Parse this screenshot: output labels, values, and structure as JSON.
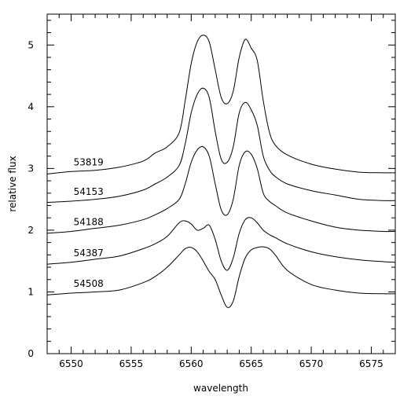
{
  "chart_data": {
    "type": "line",
    "xlabel": "wavelength",
    "ylabel": "relative flux",
    "xlim": [
      6548,
      6577
    ],
    "ylim": [
      0,
      5.5
    ],
    "x_ticks": [
      6550,
      6555,
      6560,
      6565,
      6570,
      6575
    ],
    "x_tick_labels": [
      "6550",
      "6555",
      "6560",
      "6565",
      "6570",
      "6575"
    ],
    "y_ticks": [
      0,
      1,
      2,
      3,
      4,
      5
    ],
    "y_tick_labels": [
      "0",
      "1",
      "2",
      "3",
      "4",
      "5"
    ],
    "grid": false,
    "series": [
      {
        "name": "53819",
        "x": [
          6548,
          6550,
          6552,
          6554,
          6556,
          6557,
          6558,
          6559,
          6559.5,
          6560,
          6560.5,
          6561,
          6561.5,
          6562,
          6562.5,
          6563,
          6563.5,
          6564,
          6564.5,
          6565,
          6565.5,
          6566,
          6566.5,
          6567,
          6568,
          6570,
          6572,
          6574,
          6576,
          6577
        ],
        "y": [
          2.91,
          2.95,
          2.97,
          3.02,
          3.12,
          3.25,
          3.35,
          3.58,
          4.1,
          4.7,
          5.05,
          5.16,
          5.05,
          4.6,
          4.15,
          4.05,
          4.25,
          4.8,
          5.09,
          4.95,
          4.75,
          4.1,
          3.6,
          3.38,
          3.22,
          3.07,
          2.99,
          2.94,
          2.93,
          2.93
        ]
      },
      {
        "name": "54153",
        "x": [
          6548,
          6550,
          6552,
          6554,
          6556,
          6557,
          6558,
          6559,
          6559.5,
          6560,
          6560.5,
          6561,
          6561.5,
          6562,
          6562.5,
          6563,
          6563.5,
          6564,
          6564.5,
          6565,
          6565.5,
          6566,
          6566.5,
          6567,
          6568,
          6570,
          6572,
          6574,
          6576,
          6577
        ],
        "y": [
          2.45,
          2.47,
          2.5,
          2.55,
          2.65,
          2.75,
          2.86,
          3.05,
          3.4,
          3.9,
          4.2,
          4.3,
          4.15,
          3.6,
          3.15,
          3.1,
          3.35,
          3.9,
          4.07,
          3.95,
          3.7,
          3.2,
          2.98,
          2.87,
          2.75,
          2.64,
          2.57,
          2.5,
          2.48,
          2.48
        ]
      },
      {
        "name": "54188",
        "x": [
          6548,
          6550,
          6552,
          6554,
          6556,
          6557,
          6558,
          6559,
          6559.5,
          6560,
          6560.5,
          6561,
          6561.5,
          6562,
          6562.5,
          6563,
          6563.5,
          6564,
          6564.5,
          6565,
          6565.5,
          6566,
          6566.5,
          6567,
          6568,
          6570,
          6572,
          6574,
          6576,
          6577
        ],
        "y": [
          1.95,
          1.98,
          2.03,
          2.08,
          2.17,
          2.25,
          2.35,
          2.5,
          2.75,
          3.1,
          3.3,
          3.35,
          3.2,
          2.75,
          2.33,
          2.25,
          2.5,
          3.05,
          3.27,
          3.23,
          3.0,
          2.6,
          2.47,
          2.4,
          2.28,
          2.15,
          2.05,
          2.0,
          1.98,
          1.98
        ]
      },
      {
        "name": "54387",
        "x": [
          6548,
          6550,
          6552,
          6554,
          6556,
          6557,
          6558,
          6559,
          6559.5,
          6560,
          6560.5,
          6561,
          6561.5,
          6562,
          6562.5,
          6563,
          6563.5,
          6564,
          6564.5,
          6565,
          6565.5,
          6566,
          6566.5,
          6567,
          6568,
          6570,
          6572,
          6574,
          6576,
          6577
        ],
        "y": [
          1.45,
          1.48,
          1.53,
          1.58,
          1.7,
          1.78,
          1.9,
          2.12,
          2.15,
          2.1,
          2.0,
          2.03,
          2.08,
          1.85,
          1.5,
          1.35,
          1.55,
          1.95,
          2.17,
          2.2,
          2.12,
          2.0,
          1.93,
          1.88,
          1.78,
          1.65,
          1.57,
          1.52,
          1.49,
          1.48
        ]
      },
      {
        "name": "54508",
        "x": [
          6548,
          6550,
          6552,
          6554,
          6556,
          6557,
          6558,
          6559,
          6559.5,
          6560,
          6560.5,
          6561,
          6561.5,
          6562,
          6562.5,
          6563,
          6563.5,
          6564,
          6564.5,
          6565,
          6565.5,
          6566,
          6566.5,
          6567,
          6568,
          6570,
          6572,
          6574,
          6576,
          6577
        ],
        "y": [
          0.95,
          0.98,
          1.0,
          1.03,
          1.15,
          1.25,
          1.4,
          1.6,
          1.7,
          1.72,
          1.65,
          1.5,
          1.33,
          1.2,
          0.95,
          0.75,
          0.85,
          1.25,
          1.55,
          1.68,
          1.72,
          1.73,
          1.7,
          1.6,
          1.35,
          1.12,
          1.03,
          0.98,
          0.97,
          0.97
        ]
      }
    ]
  }
}
